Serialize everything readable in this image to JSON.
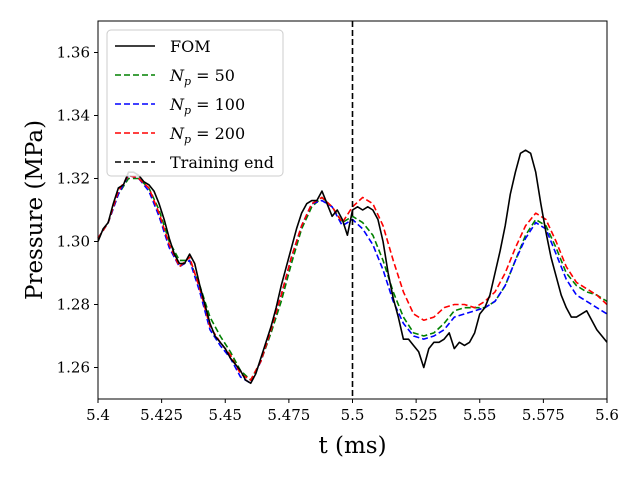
{
  "chart_data": {
    "type": "line",
    "xlabel": "t (ms)",
    "ylabel": "Pressure (MPa)",
    "xlim": [
      5.4,
      5.6
    ],
    "ylim": [
      1.25,
      1.37
    ],
    "xticks": [
      5.4,
      5.425,
      5.45,
      5.475,
      5.5,
      5.525,
      5.55,
      5.575,
      5.6
    ],
    "xtick_labels": [
      "5.4",
      "5.425",
      "5.45",
      "5.475",
      "5.5",
      "5.525",
      "5.55",
      "5.575",
      "5.6"
    ],
    "yticks": [
      1.26,
      1.28,
      1.3,
      1.32,
      1.34,
      1.36
    ],
    "ytick_labels": [
      "1.26",
      "1.28",
      "1.30",
      "1.32",
      "1.34",
      "1.36"
    ],
    "grid": false,
    "legend_position": "top-left",
    "training_end": 5.5,
    "series": [
      {
        "name": "FOM",
        "color": "#000000",
        "dash": "solid",
        "x": [
          5.4,
          5.402,
          5.404,
          5.406,
          5.408,
          5.41,
          5.412,
          5.414,
          5.416,
          5.418,
          5.42,
          5.422,
          5.424,
          5.426,
          5.428,
          5.43,
          5.432,
          5.434,
          5.436,
          5.438,
          5.44,
          5.442,
          5.444,
          5.446,
          5.448,
          5.45,
          5.452,
          5.454,
          5.456,
          5.458,
          5.46,
          5.462,
          5.464,
          5.466,
          5.468,
          5.47,
          5.472,
          5.474,
          5.476,
          5.478,
          5.48,
          5.482,
          5.484,
          5.486,
          5.488,
          5.49,
          5.492,
          5.494,
          5.496,
          5.498,
          5.5,
          5.502,
          5.504,
          5.506,
          5.508,
          5.51,
          5.512,
          5.514,
          5.516,
          5.518,
          5.52,
          5.522,
          5.524,
          5.526,
          5.528,
          5.53,
          5.532,
          5.534,
          5.536,
          5.538,
          5.54,
          5.542,
          5.544,
          5.546,
          5.548,
          5.55,
          5.552,
          5.554,
          5.556,
          5.558,
          5.56,
          5.562,
          5.564,
          5.566,
          5.568,
          5.57,
          5.572,
          5.574,
          5.576,
          5.578,
          5.58,
          5.582,
          5.584,
          5.586,
          5.588,
          5.59,
          5.592,
          5.594,
          5.596,
          5.598,
          5.6
        ],
        "values": [
          1.3,
          1.304,
          1.306,
          1.312,
          1.317,
          1.318,
          1.322,
          1.322,
          1.321,
          1.319,
          1.318,
          1.316,
          1.312,
          1.307,
          1.301,
          1.296,
          1.293,
          1.293,
          1.296,
          1.293,
          1.286,
          1.28,
          1.274,
          1.27,
          1.268,
          1.266,
          1.263,
          1.261,
          1.259,
          1.256,
          1.255,
          1.258,
          1.263,
          1.268,
          1.273,
          1.279,
          1.286,
          1.292,
          1.298,
          1.304,
          1.309,
          1.312,
          1.313,
          1.313,
          1.316,
          1.312,
          1.308,
          1.31,
          1.307,
          1.302,
          1.31,
          1.311,
          1.31,
          1.311,
          1.31,
          1.307,
          1.3,
          1.29,
          1.282,
          1.276,
          1.269,
          1.269,
          1.267,
          1.265,
          1.26,
          1.266,
          1.268,
          1.268,
          1.269,
          1.271,
          1.266,
          1.268,
          1.267,
          1.268,
          1.271,
          1.277,
          1.279,
          1.283,
          1.29,
          1.297,
          1.305,
          1.315,
          1.322,
          1.328,
          1.329,
          1.328,
          1.322,
          1.312,
          1.303,
          1.295,
          1.289,
          1.283,
          1.279,
          1.276,
          1.276,
          1.277,
          1.278,
          1.275,
          1.272,
          1.27,
          1.268
        ]
      },
      {
        "name": "Np = 50",
        "color": "#008000",
        "dash": "dashed",
        "x": [
          5.4,
          5.404,
          5.408,
          5.412,
          5.416,
          5.42,
          5.424,
          5.428,
          5.432,
          5.436,
          5.44,
          5.444,
          5.448,
          5.452,
          5.456,
          5.46,
          5.464,
          5.468,
          5.472,
          5.476,
          5.48,
          5.484,
          5.488,
          5.492,
          5.496,
          5.5,
          5.504,
          5.508,
          5.512,
          5.516,
          5.52,
          5.524,
          5.528,
          5.532,
          5.536,
          5.54,
          5.544,
          5.548,
          5.552,
          5.556,
          5.56,
          5.564,
          5.568,
          5.572,
          5.576,
          5.58,
          5.584,
          5.588,
          5.592,
          5.596,
          5.6
        ],
        "values": [
          1.301,
          1.306,
          1.315,
          1.32,
          1.32,
          1.317,
          1.31,
          1.3,
          1.294,
          1.294,
          1.286,
          1.276,
          1.27,
          1.265,
          1.259,
          1.256,
          1.262,
          1.271,
          1.281,
          1.293,
          1.304,
          1.311,
          1.314,
          1.311,
          1.306,
          1.308,
          1.306,
          1.302,
          1.294,
          1.284,
          1.276,
          1.271,
          1.27,
          1.271,
          1.274,
          1.278,
          1.279,
          1.279,
          1.279,
          1.281,
          1.286,
          1.294,
          1.302,
          1.307,
          1.305,
          1.298,
          1.29,
          1.286,
          1.284,
          1.283,
          1.281
        ]
      },
      {
        "name": "Np = 100",
        "color": "#0000ff",
        "dash": "dashed",
        "x": [
          5.4,
          5.404,
          5.408,
          5.412,
          5.416,
          5.42,
          5.424,
          5.428,
          5.432,
          5.436,
          5.44,
          5.444,
          5.448,
          5.452,
          5.456,
          5.46,
          5.464,
          5.468,
          5.472,
          5.476,
          5.48,
          5.484,
          5.488,
          5.492,
          5.496,
          5.5,
          5.504,
          5.508,
          5.512,
          5.516,
          5.52,
          5.524,
          5.528,
          5.532,
          5.536,
          5.54,
          5.544,
          5.548,
          5.552,
          5.556,
          5.56,
          5.564,
          5.568,
          5.572,
          5.576,
          5.58,
          5.584,
          5.588,
          5.592,
          5.596,
          5.6
        ],
        "values": [
          1.301,
          1.306,
          1.315,
          1.321,
          1.32,
          1.316,
          1.308,
          1.298,
          1.292,
          1.294,
          1.284,
          1.272,
          1.267,
          1.263,
          1.257,
          1.255,
          1.262,
          1.272,
          1.283,
          1.295,
          1.305,
          1.312,
          1.313,
          1.311,
          1.305,
          1.307,
          1.304,
          1.299,
          1.291,
          1.281,
          1.274,
          1.27,
          1.269,
          1.27,
          1.272,
          1.276,
          1.277,
          1.278,
          1.279,
          1.281,
          1.286,
          1.294,
          1.301,
          1.306,
          1.304,
          1.296,
          1.288,
          1.283,
          1.281,
          1.279,
          1.277
        ]
      },
      {
        "name": "Np = 200",
        "color": "#ff0000",
        "dash": "dashed",
        "x": [
          5.4,
          5.404,
          5.408,
          5.412,
          5.416,
          5.42,
          5.424,
          5.428,
          5.432,
          5.436,
          5.44,
          5.444,
          5.448,
          5.452,
          5.456,
          5.46,
          5.464,
          5.468,
          5.472,
          5.476,
          5.48,
          5.484,
          5.488,
          5.492,
          5.496,
          5.5,
          5.504,
          5.508,
          5.512,
          5.516,
          5.52,
          5.524,
          5.528,
          5.532,
          5.536,
          5.54,
          5.544,
          5.548,
          5.552,
          5.556,
          5.56,
          5.564,
          5.568,
          5.572,
          5.576,
          5.58,
          5.584,
          5.588,
          5.592,
          5.596,
          5.6
        ],
        "values": [
          1.301,
          1.306,
          1.316,
          1.321,
          1.32,
          1.317,
          1.309,
          1.299,
          1.292,
          1.295,
          1.285,
          1.273,
          1.268,
          1.264,
          1.258,
          1.256,
          1.262,
          1.272,
          1.283,
          1.295,
          1.305,
          1.312,
          1.314,
          1.311,
          1.306,
          1.311,
          1.314,
          1.312,
          1.305,
          1.294,
          1.284,
          1.277,
          1.275,
          1.276,
          1.279,
          1.28,
          1.28,
          1.279,
          1.281,
          1.284,
          1.29,
          1.298,
          1.305,
          1.309,
          1.307,
          1.3,
          1.292,
          1.287,
          1.285,
          1.283,
          1.28
        ]
      }
    ],
    "legend": [
      {
        "label": "FOM",
        "color": "#000000",
        "dash": "solid",
        "math": false
      },
      {
        "label": "Np = 50",
        "base": "N",
        "sub": "p",
        "rest": " = 50",
        "color": "#008000",
        "dash": "dashed",
        "math": true
      },
      {
        "label": "Np = 100",
        "base": "N",
        "sub": "p",
        "rest": " = 100",
        "color": "#0000ff",
        "dash": "dashed",
        "math": true
      },
      {
        "label": "Np = 200",
        "base": "N",
        "sub": "p",
        "rest": " = 200",
        "color": "#ff0000",
        "dash": "dashed",
        "math": true
      },
      {
        "label": "Training end",
        "color": "#000000",
        "dash": "dashed",
        "math": false
      }
    ]
  }
}
